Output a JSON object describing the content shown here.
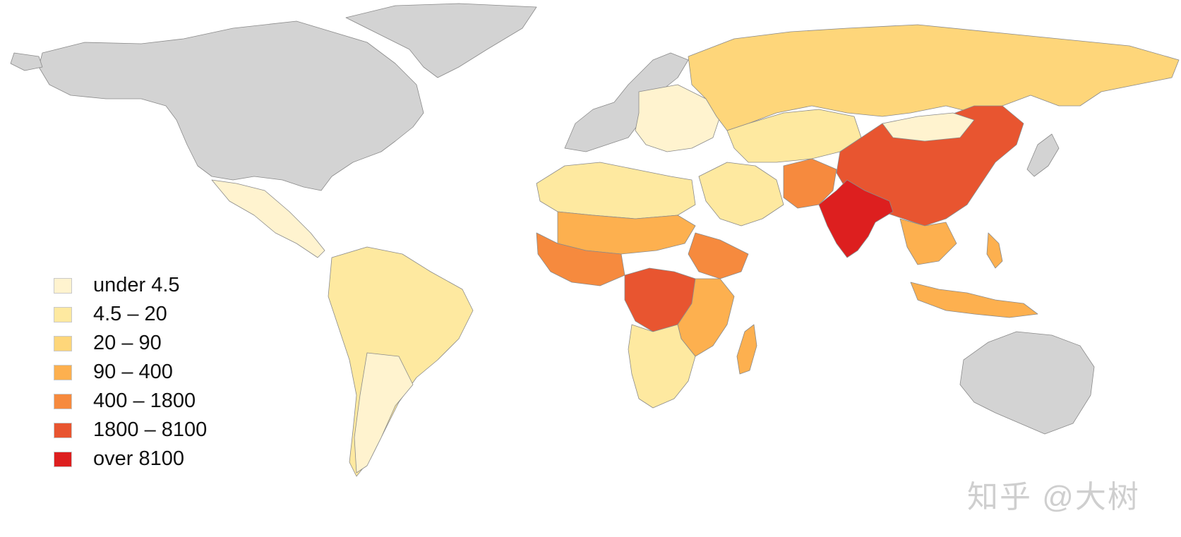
{
  "map": {
    "legend": [
      {
        "label": "under 4.5",
        "color": "#fff3cf"
      },
      {
        "label": "4.5 – 20",
        "color": "#fee9a0"
      },
      {
        "label": "20 – 90",
        "color": "#fed67a"
      },
      {
        "label": "90 – 400",
        "color": "#fdb04f"
      },
      {
        "label": "400 – 1800",
        "color": "#f68a3e"
      },
      {
        "label": "1800 – 8100",
        "color": "#e85530"
      },
      {
        "label": "over 8100",
        "color": "#dd1f1f"
      }
    ],
    "no_data_color": "#d3d3d3",
    "regions": [
      {
        "name": "North America",
        "class": "na"
      },
      {
        "name": "Greenland",
        "class": "na"
      },
      {
        "name": "Western Europe",
        "class": "na"
      },
      {
        "name": "Australia",
        "class": "na"
      },
      {
        "name": "Japan",
        "class": "na"
      },
      {
        "name": "Russia",
        "class": 2
      },
      {
        "name": "Mexico",
        "class": 0
      },
      {
        "name": "South America",
        "class": 1
      },
      {
        "name": "North Africa",
        "class": 1
      },
      {
        "name": "Sahel",
        "class": 3
      },
      {
        "name": "West Africa",
        "class": 4
      },
      {
        "name": "Ethiopia",
        "class": 4
      },
      {
        "name": "Central Africa",
        "class": 5
      },
      {
        "name": "Southern Africa",
        "class": 1
      },
      {
        "name": "Madagascar",
        "class": 3
      },
      {
        "name": "Middle East",
        "class": 1
      },
      {
        "name": "Pakistan",
        "class": 4
      },
      {
        "name": "India",
        "class": 6
      },
      {
        "name": "China",
        "class": 5
      },
      {
        "name": "Southeast Asia",
        "class": 3
      },
      {
        "name": "Indonesia",
        "class": 3
      },
      {
        "name": "Central Asia",
        "class": 1
      },
      {
        "name": "Eastern Europe",
        "class": 0
      }
    ]
  },
  "watermark": {
    "brand": "知乎",
    "handle": "@大树"
  }
}
